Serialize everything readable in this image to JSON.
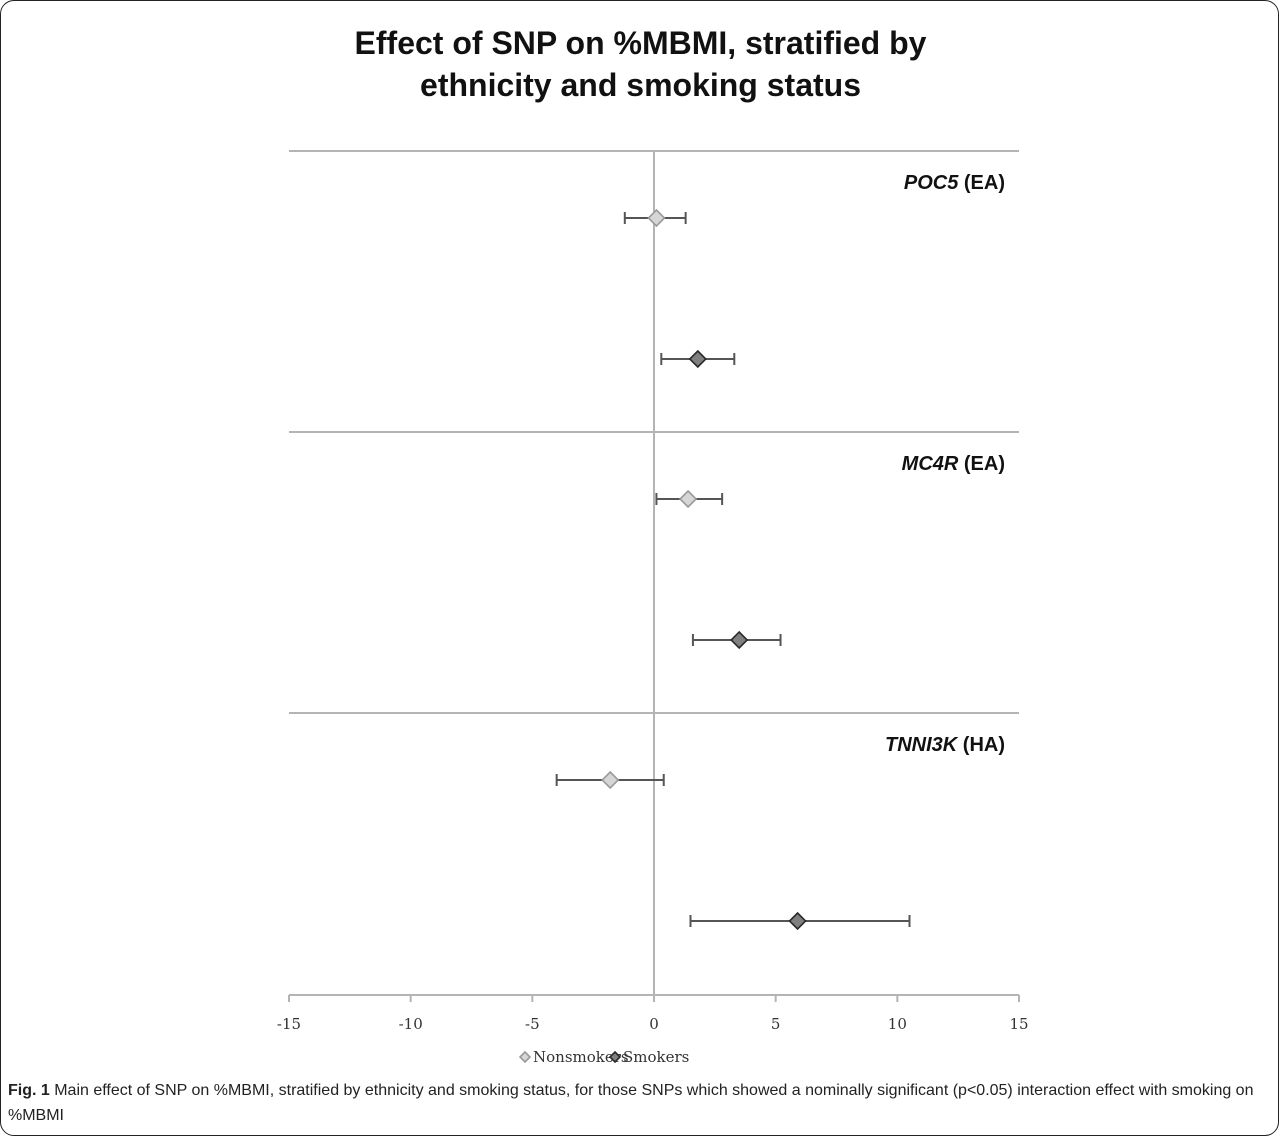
{
  "chart_data": {
    "type": "scatter",
    "subtype": "forest-plot",
    "title_lines": [
      "Effect of SNP on %MBMI, stratified by",
      "ethnicity and smoking status"
    ],
    "xlim": [
      -15,
      15
    ],
    "xticks": [
      -15,
      -10,
      -5,
      0,
      5,
      10,
      15
    ],
    "xtick_labels": [
      "-15",
      "-10",
      "-5",
      "0",
      "5",
      "10",
      "15"
    ],
    "xlabel": "",
    "ylabel": "",
    "grid": false,
    "legend_position": "bottom",
    "panels": [
      {
        "gene": "POC5",
        "group": "(EA)",
        "points": [
          {
            "series": "Nonsmokers",
            "estimate": 0.1,
            "ci_low": -1.2,
            "ci_high": 1.3
          },
          {
            "series": "Smokers",
            "estimate": 1.8,
            "ci_low": 0.3,
            "ci_high": 3.3
          }
        ]
      },
      {
        "gene": "MC4R",
        "group": "(EA)",
        "points": [
          {
            "series": "Nonsmokers",
            "estimate": 1.4,
            "ci_low": 0.1,
            "ci_high": 2.8
          },
          {
            "series": "Smokers",
            "estimate": 3.5,
            "ci_low": 1.6,
            "ci_high": 5.2
          }
        ]
      },
      {
        "gene": "TNNI3K",
        "group": "(HA)",
        "points": [
          {
            "series": "Nonsmokers",
            "estimate": -1.8,
            "ci_low": -4.0,
            "ci_high": 0.4
          },
          {
            "series": "Smokers",
            "estimate": 5.9,
            "ci_low": 1.5,
            "ci_high": 10.5
          }
        ]
      }
    ],
    "series": [
      {
        "name": "Nonsmokers",
        "marker": "diamond",
        "fill": "#d6d6d6",
        "stroke": "#9a9a9a"
      },
      {
        "name": "Smokers",
        "marker": "diamond",
        "fill": "#808080",
        "stroke": "#2a2a2a"
      }
    ],
    "colors": {
      "axis": "#b4b4b4",
      "errorbar": "#555555",
      "text": "#111111"
    }
  },
  "caption": {
    "label": "Fig. 1",
    "text": " Main effect of SNP on %MBMI, stratified by ethnicity and smoking status, for those SNPs which showed a nominally significant (p<0.05) interaction effect with smoking on %MBMI"
  }
}
